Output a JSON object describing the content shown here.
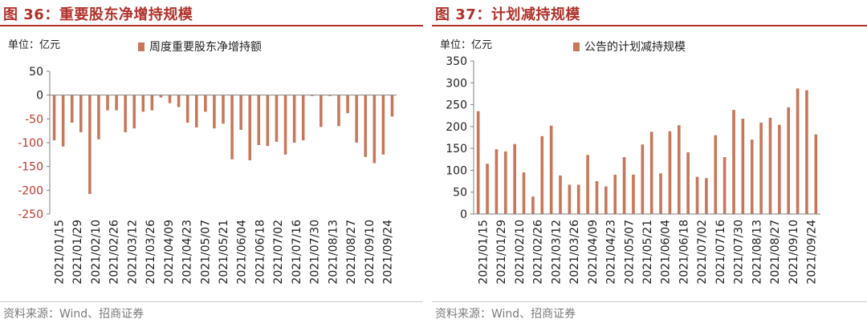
{
  "colors": {
    "bar": "#c8775a",
    "title": "#b0322b",
    "axis": "#808080",
    "neg_tick": "#c0392b",
    "text": "#222222"
  },
  "source": "资料来源：Wind、招商证券",
  "chart_data": [
    {
      "type": "bar",
      "title": "图 36：重要股东净增持规模",
      "unit": "单位：亿元",
      "legend": [
        "周度重要股东净增持额"
      ],
      "legend_placement": "top",
      "ylim": [
        -250,
        50
      ],
      "yticks": [
        50,
        0,
        -50,
        -100,
        -150,
        -200,
        -250
      ],
      "grid": false,
      "xtick_labels": [
        "2021/01/15",
        "2021/01/29",
        "2021/02/10",
        "2021/02/26",
        "2021/03/12",
        "2021/03/26",
        "2021/04/09",
        "2021/04/23",
        "2021/05/07",
        "2021/05/21",
        "2021/06/04",
        "2021/06/18",
        "2021/07/02",
        "2021/07/16",
        "2021/07/30",
        "2021/08/13",
        "2021/08/27",
        "2021/09/10",
        "2021/09/24"
      ],
      "series": [
        {
          "name": "周度重要股东净增持额",
          "values": [
            -95,
            -108,
            -58,
            -78,
            -208,
            -93,
            -32,
            -32,
            -78,
            -70,
            -35,
            -32,
            -5,
            -17,
            -25,
            -58,
            -68,
            -35,
            -70,
            -60,
            -135,
            -73,
            -137,
            -105,
            -107,
            -98,
            -125,
            -100,
            -95,
            -2,
            -67,
            -2,
            -65,
            -38,
            -100,
            -130,
            -143,
            -125,
            -45
          ]
        }
      ]
    },
    {
      "type": "bar",
      "title": "图 37：计划减持规模",
      "unit": "单位：亿元",
      "legend": [
        "公告的计划减持规模"
      ],
      "legend_placement": "top",
      "ylim": [
        0,
        350
      ],
      "yticks": [
        350,
        300,
        250,
        200,
        150,
        100,
        50,
        0
      ],
      "grid": false,
      "xtick_labels": [
        "2021/01/15",
        "2021/01/29",
        "2021/02/10",
        "2021/02/26",
        "2021/03/12",
        "2021/03/26",
        "2021/04/09",
        "2021/04/23",
        "2021/05/07",
        "2021/05/21",
        "2021/06/04",
        "2021/06/18",
        "2021/07/02",
        "2021/07/16",
        "2021/07/30",
        "2021/08/13",
        "2021/08/27",
        "2021/09/10",
        "2021/09/24"
      ],
      "series": [
        {
          "name": "公告的计划减持规模",
          "values": [
            235,
            115,
            148,
            143,
            160,
            95,
            40,
            178,
            202,
            88,
            67,
            67,
            135,
            75,
            63,
            90,
            130,
            90,
            159,
            188,
            93,
            189,
            203,
            141,
            85,
            82,
            180,
            130,
            238,
            218,
            170,
            209,
            220,
            204,
            244,
            287,
            283,
            182
          ]
        }
      ]
    }
  ]
}
